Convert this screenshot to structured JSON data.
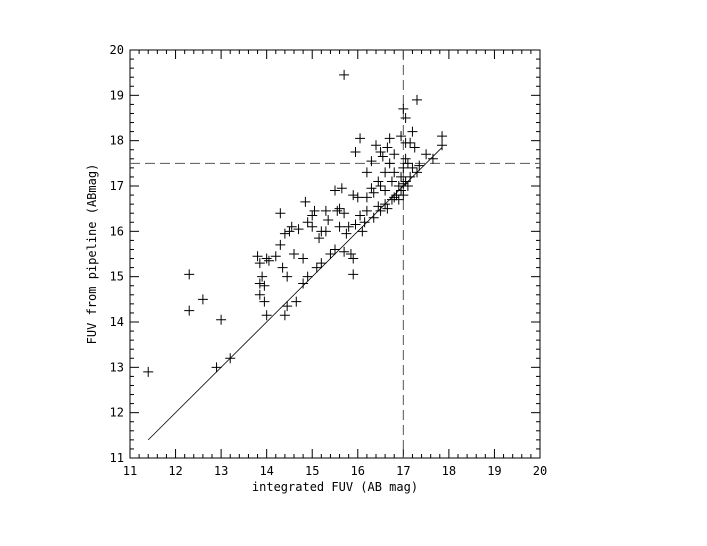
{
  "chart_data": {
    "type": "scatter",
    "title": "",
    "xlabel": "integrated FUV (AB mag)",
    "ylabel": "FUV from pipeline (ABmag)",
    "xlim": [
      11,
      20
    ],
    "ylim": [
      11,
      20
    ],
    "xticks": [
      "11",
      "12",
      "13",
      "14",
      "15",
      "16",
      "17",
      "18",
      "19",
      "20"
    ],
    "yticks": [
      "11",
      "12",
      "13",
      "14",
      "15",
      "16",
      "17",
      "18",
      "19",
      "20"
    ],
    "marker": "plus",
    "color": "#000000",
    "grid": false,
    "reference_line": {
      "x": [
        11.4,
        17.85
      ],
      "y": [
        11.4,
        17.85
      ],
      "style": "solid"
    },
    "cut_lines": {
      "x": 17.0,
      "y": 17.5,
      "style": "dashed"
    },
    "points": [
      [
        11.4,
        12.9
      ],
      [
        12.3,
        15.05
      ],
      [
        12.3,
        14.25
      ],
      [
        12.6,
        14.5
      ],
      [
        13.0,
        14.05
      ],
      [
        12.9,
        13.0
      ],
      [
        13.2,
        13.2
      ],
      [
        13.8,
        15.45
      ],
      [
        13.85,
        15.3
      ],
      [
        13.85,
        14.85
      ],
      [
        13.9,
        15.0
      ],
      [
        13.95,
        14.8
      ],
      [
        13.85,
        14.6
      ],
      [
        13.95,
        14.45
      ],
      [
        14.0,
        15.4
      ],
      [
        14.05,
        15.35
      ],
      [
        14.0,
        14.15
      ],
      [
        14.2,
        15.45
      ],
      [
        14.3,
        15.7
      ],
      [
        14.35,
        15.2
      ],
      [
        14.45,
        15.0
      ],
      [
        14.4,
        14.15
      ],
      [
        14.45,
        14.35
      ],
      [
        14.3,
        16.4
      ],
      [
        14.4,
        15.95
      ],
      [
        14.5,
        16.0
      ],
      [
        14.55,
        16.1
      ],
      [
        14.6,
        15.5
      ],
      [
        14.7,
        16.05
      ],
      [
        14.65,
        14.45
      ],
      [
        14.8,
        15.4
      ],
      [
        14.8,
        14.85
      ],
      [
        14.85,
        16.65
      ],
      [
        14.9,
        16.2
      ],
      [
        14.9,
        15.0
      ],
      [
        15.0,
        16.35
      ],
      [
        15.0,
        16.1
      ],
      [
        15.05,
        16.45
      ],
      [
        15.15,
        15.85
      ],
      [
        15.2,
        16.0
      ],
      [
        15.1,
        15.2
      ],
      [
        15.2,
        15.3
      ],
      [
        15.3,
        16.45
      ],
      [
        15.3,
        16.0
      ],
      [
        15.35,
        16.25
      ],
      [
        15.4,
        15.5
      ],
      [
        15.5,
        16.9
      ],
      [
        15.55,
        16.45
      ],
      [
        15.6,
        16.5
      ],
      [
        15.6,
        16.1
      ],
      [
        15.5,
        15.6
      ],
      [
        15.7,
        19.45
      ],
      [
        15.65,
        16.95
      ],
      [
        15.7,
        16.4
      ],
      [
        15.75,
        15.95
      ],
      [
        15.7,
        15.55
      ],
      [
        15.8,
        16.1
      ],
      [
        15.85,
        15.5
      ],
      [
        15.9,
        16.8
      ],
      [
        15.95,
        17.75
      ],
      [
        15.95,
        16.15
      ],
      [
        15.9,
        15.05
      ],
      [
        15.9,
        15.4
      ],
      [
        16.0,
        16.75
      ],
      [
        16.05,
        18.05
      ],
      [
        16.05,
        16.35
      ],
      [
        16.1,
        16.0
      ],
      [
        16.15,
        16.2
      ],
      [
        16.2,
        17.3
      ],
      [
        16.2,
        16.75
      ],
      [
        16.2,
        16.45
      ],
      [
        16.3,
        17.55
      ],
      [
        16.3,
        16.95
      ],
      [
        16.35,
        16.85
      ],
      [
        16.35,
        16.3
      ],
      [
        16.4,
        17.9
      ],
      [
        16.45,
        17.1
      ],
      [
        16.45,
        16.55
      ],
      [
        16.5,
        17.75
      ],
      [
        16.5,
        16.45
      ],
      [
        16.55,
        17.65
      ],
      [
        16.5,
        17.0
      ],
      [
        16.6,
        17.3
      ],
      [
        16.6,
        16.9
      ],
      [
        16.6,
        16.6
      ],
      [
        16.65,
        17.85
      ],
      [
        16.65,
        16.5
      ],
      [
        16.7,
        18.05
      ],
      [
        16.7,
        17.5
      ],
      [
        16.75,
        17.1
      ],
      [
        16.75,
        16.7
      ],
      [
        16.8,
        17.7
      ],
      [
        16.8,
        17.3
      ],
      [
        16.8,
        16.75
      ],
      [
        16.85,
        16.8
      ],
      [
        16.9,
        17.0
      ],
      [
        16.9,
        16.7
      ],
      [
        16.95,
        18.1
      ],
      [
        16.95,
        17.2
      ],
      [
        16.95,
        16.9
      ],
      [
        17.0,
        18.7
      ],
      [
        17.0,
        17.4
      ],
      [
        17.0,
        17.05
      ],
      [
        17.0,
        16.8
      ],
      [
        17.05,
        18.5
      ],
      [
        17.05,
        17.95
      ],
      [
        17.05,
        17.6
      ],
      [
        17.05,
        17.1
      ],
      [
        17.1,
        17.5
      ],
      [
        17.1,
        17.0
      ],
      [
        17.15,
        17.95
      ],
      [
        17.15,
        17.2
      ],
      [
        17.2,
        18.2
      ],
      [
        17.2,
        17.4
      ],
      [
        17.25,
        17.85
      ],
      [
        17.3,
        18.9
      ],
      [
        17.3,
        17.3
      ],
      [
        17.35,
        17.45
      ],
      [
        17.5,
        17.7
      ],
      [
        17.65,
        17.6
      ],
      [
        17.85,
        18.1
      ],
      [
        17.85,
        17.9
      ]
    ]
  }
}
